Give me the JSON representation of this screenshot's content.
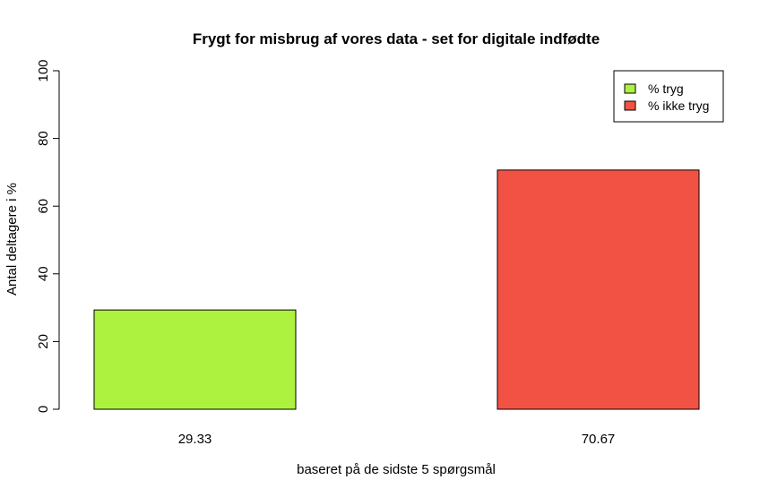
{
  "chart_data": {
    "type": "bar",
    "title": "Frygt for misbrug af vores data - set for digitale indfødte",
    "xlabel": "baseret på de sidste 5 spørgsmål",
    "ylabel": "Antal deltagere i %",
    "ylim": [
      0,
      100
    ],
    "yticks": [
      0,
      20,
      40,
      60,
      80,
      100
    ],
    "categories": [
      "29.33",
      "70.67"
    ],
    "values": [
      29.33,
      70.67
    ],
    "colors": [
      "#adf23f",
      "#f25243"
    ],
    "legend": {
      "placement": "top-right",
      "entries": [
        {
          "label": "% tryg",
          "color": "#adf23f"
        },
        {
          "label": "% ikke tryg",
          "color": "#f25243"
        }
      ]
    },
    "grid": false
  }
}
